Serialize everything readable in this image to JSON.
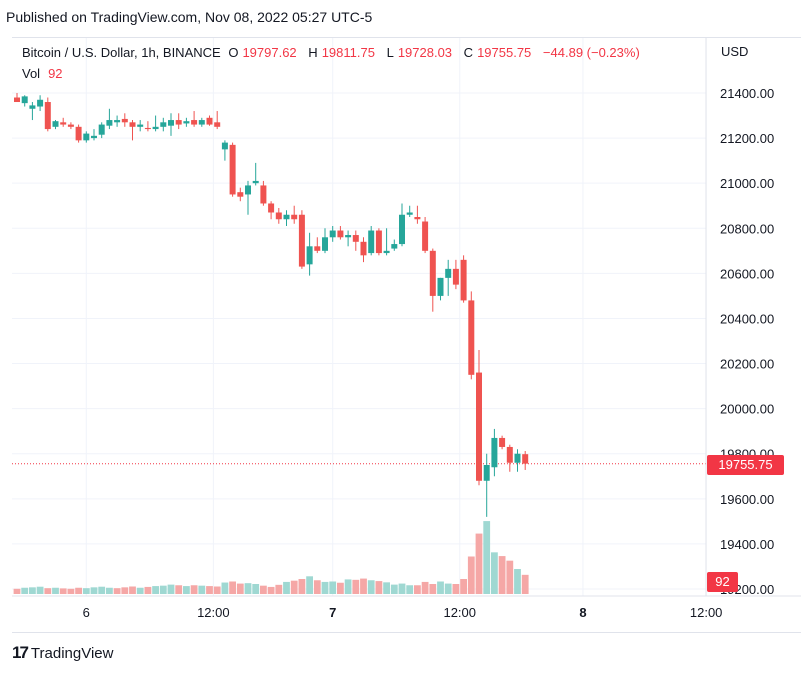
{
  "header": {
    "published": "Published on TradingView.com, Nov 08, 2022 05:27 UTC-5"
  },
  "legend": {
    "symbol": "Bitcoin / U.S. Dollar, 1h, BINANCE",
    "o_label": "O",
    "o_value": "19797.62",
    "h_label": "H",
    "h_value": "19811.75",
    "l_label": "L",
    "l_value": "19728.03",
    "c_label": "C",
    "c_value": "19755.75",
    "change": "−44.89 (−0.23%)",
    "vol_label": "Vol",
    "vol_value": "92"
  },
  "currency": "USD",
  "price_tag": "19755.75",
  "vol_tag": "92",
  "footer": {
    "brand": "TradingView",
    "logo": "17"
  },
  "colors": {
    "up": "#26a69a",
    "down": "#ef5350",
    "up_vol": "#9fd8d2",
    "down_vol": "#f5a7a6",
    "grid": "#f0f3fa",
    "last_price_line": "#f23645"
  },
  "chart_data": {
    "type": "candlestick",
    "timeframe": "1h",
    "y_ticks": [
      "21400.00",
      "21200.00",
      "21000.00",
      "20800.00",
      "20600.00",
      "20400.00",
      "20200.00",
      "20000.00",
      "19800.00",
      "19600.00",
      "19400.00",
      "19200.00"
    ],
    "ylim": [
      19200,
      21500
    ],
    "x_ticks": [
      "6",
      "12:00",
      "7",
      "12:00",
      "8",
      "12:00"
    ],
    "x_tick_index": [
      9,
      25.5,
      41,
      57.5,
      73.5,
      89.5
    ],
    "last_price": 19755.75,
    "candles": [
      {
        "o": 21380,
        "h": 21400,
        "l": 21370,
        "c": 21360
      },
      {
        "o": 21355,
        "h": 21390,
        "l": 21340,
        "c": 21385
      },
      {
        "o": 21330,
        "h": 21360,
        "l": 21280,
        "c": 21345
      },
      {
        "o": 21340,
        "h": 21390,
        "l": 21320,
        "c": 21370
      },
      {
        "o": 21360,
        "h": 21380,
        "l": 21230,
        "c": 21240
      },
      {
        "o": 21250,
        "h": 21280,
        "l": 21240,
        "c": 21275
      },
      {
        "o": 21270,
        "h": 21290,
        "l": 21250,
        "c": 21260
      },
      {
        "o": 21260,
        "h": 21270,
        "l": 21240,
        "c": 21250
      },
      {
        "o": 21250,
        "h": 21260,
        "l": 21180,
        "c": 21190
      },
      {
        "o": 21190,
        "h": 21230,
        "l": 21180,
        "c": 21220
      },
      {
        "o": 21200,
        "h": 21240,
        "l": 21190,
        "c": 21210
      },
      {
        "o": 21215,
        "h": 21270,
        "l": 21200,
        "c": 21260
      },
      {
        "o": 21255,
        "h": 21330,
        "l": 21240,
        "c": 21280
      },
      {
        "o": 21270,
        "h": 21300,
        "l": 21250,
        "c": 21280
      },
      {
        "o": 21285,
        "h": 21310,
        "l": 21250,
        "c": 21270
      },
      {
        "o": 21270,
        "h": 21280,
        "l": 21190,
        "c": 21250
      },
      {
        "o": 21250,
        "h": 21280,
        "l": 21230,
        "c": 21260
      },
      {
        "o": 21245,
        "h": 21275,
        "l": 21230,
        "c": 21240
      },
      {
        "o": 21240,
        "h": 21300,
        "l": 21230,
        "c": 21250
      },
      {
        "o": 21250,
        "h": 21290,
        "l": 21230,
        "c": 21270
      },
      {
        "o": 21255,
        "h": 21310,
        "l": 21210,
        "c": 21280
      },
      {
        "o": 21280,
        "h": 21310,
        "l": 21240,
        "c": 21260
      },
      {
        "o": 21265,
        "h": 21290,
        "l": 21250,
        "c": 21275
      },
      {
        "o": 21280,
        "h": 21320,
        "l": 21250,
        "c": 21260
      },
      {
        "o": 21260,
        "h": 21290,
        "l": 21250,
        "c": 21280
      },
      {
        "o": 21290,
        "h": 21300,
        "l": 21255,
        "c": 21260
      },
      {
        "o": 21270,
        "h": 21320,
        "l": 21240,
        "c": 21250
      },
      {
        "o": 21150,
        "h": 21190,
        "l": 21100,
        "c": 21180
      },
      {
        "o": 21170,
        "h": 21180,
        "l": 20940,
        "c": 20950
      },
      {
        "o": 20960,
        "h": 20980,
        "l": 20920,
        "c": 20940
      },
      {
        "o": 20950,
        "h": 21010,
        "l": 20860,
        "c": 20990
      },
      {
        "o": 21000,
        "h": 21090,
        "l": 20990,
        "c": 21010
      },
      {
        "o": 20990,
        "h": 21010,
        "l": 20900,
        "c": 20910
      },
      {
        "o": 20910,
        "h": 20920,
        "l": 20840,
        "c": 20870
      },
      {
        "o": 20870,
        "h": 20890,
        "l": 20820,
        "c": 20840
      },
      {
        "o": 20840,
        "h": 20880,
        "l": 20810,
        "c": 20860
      },
      {
        "o": 20860,
        "h": 20900,
        "l": 20820,
        "c": 20840
      },
      {
        "o": 20860,
        "h": 20880,
        "l": 20620,
        "c": 20630
      },
      {
        "o": 20640,
        "h": 20780,
        "l": 20590,
        "c": 20720
      },
      {
        "o": 20720,
        "h": 20760,
        "l": 20690,
        "c": 20700
      },
      {
        "o": 20700,
        "h": 20800,
        "l": 20690,
        "c": 20760
      },
      {
        "o": 20760,
        "h": 20810,
        "l": 20740,
        "c": 20790
      },
      {
        "o": 20790,
        "h": 20810,
        "l": 20750,
        "c": 20760
      },
      {
        "o": 20760,
        "h": 20790,
        "l": 20720,
        "c": 20770
      },
      {
        "o": 20770,
        "h": 20790,
        "l": 20700,
        "c": 20740
      },
      {
        "o": 20740,
        "h": 20760,
        "l": 20650,
        "c": 20680
      },
      {
        "o": 20690,
        "h": 20810,
        "l": 20680,
        "c": 20790
      },
      {
        "o": 20790,
        "h": 20800,
        "l": 20680,
        "c": 20690
      },
      {
        "o": 20690,
        "h": 20800,
        "l": 20680,
        "c": 20700
      },
      {
        "o": 20710,
        "h": 20750,
        "l": 20700,
        "c": 20730
      },
      {
        "o": 20730,
        "h": 20910,
        "l": 20720,
        "c": 20860
      },
      {
        "o": 20860,
        "h": 20900,
        "l": 20850,
        "c": 20870
      },
      {
        "o": 20850,
        "h": 20900,
        "l": 20820,
        "c": 20840
      },
      {
        "o": 20830,
        "h": 20850,
        "l": 20690,
        "c": 20700
      },
      {
        "o": 20700,
        "h": 20710,
        "l": 20430,
        "c": 20500
      },
      {
        "o": 20500,
        "h": 20580,
        "l": 20480,
        "c": 20580
      },
      {
        "o": 20580,
        "h": 20660,
        "l": 20500,
        "c": 20620
      },
      {
        "o": 20620,
        "h": 20660,
        "l": 20530,
        "c": 20550
      },
      {
        "o": 20660,
        "h": 20680,
        "l": 20470,
        "c": 20480
      },
      {
        "o": 20480,
        "h": 20520,
        "l": 20130,
        "c": 20150
      },
      {
        "o": 20160,
        "h": 20260,
        "l": 19660,
        "c": 19680
      },
      {
        "o": 19680,
        "h": 19800,
        "l": 19520,
        "c": 19750
      },
      {
        "o": 19740,
        "h": 19910,
        "l": 19700,
        "c": 19870
      },
      {
        "o": 19870,
        "h": 19880,
        "l": 19820,
        "c": 19830
      },
      {
        "o": 19830,
        "h": 19840,
        "l": 19720,
        "c": 19760
      },
      {
        "o": 19760,
        "h": 19820,
        "l": 19720,
        "c": 19800
      },
      {
        "o": 19798,
        "h": 19812,
        "l": 19728,
        "c": 19756
      }
    ],
    "volume_ylim": [
      0,
      500
    ],
    "volumes": [
      25,
      30,
      32,
      35,
      28,
      30,
      27,
      25,
      30,
      28,
      32,
      35,
      30,
      28,
      32,
      36,
      30,
      34,
      38,
      40,
      45,
      42,
      38,
      42,
      40,
      38,
      36,
      55,
      60,
      50,
      52,
      48,
      40,
      34,
      44,
      58,
      64,
      72,
      85,
      66,
      58,
      60,
      54,
      70,
      68,
      74,
      66,
      62,
      56,
      45,
      50,
      42,
      42,
      58,
      48,
      60,
      50,
      48,
      72,
      180,
      290,
      350,
      200,
      182,
      160,
      120,
      92
    ],
    "volume_up": [
      false,
      true,
      true,
      true,
      false,
      true,
      false,
      false,
      false,
      true,
      true,
      true,
      true,
      false,
      false,
      false,
      true,
      false,
      true,
      true,
      true,
      false,
      true,
      false,
      true,
      false,
      false,
      true,
      false,
      false,
      true,
      true,
      false,
      false,
      false,
      true,
      false,
      false,
      true,
      false,
      true,
      true,
      false,
      true,
      false,
      false,
      true,
      false,
      true,
      true,
      true,
      true,
      false,
      false,
      false,
      true,
      true,
      false,
      false,
      false,
      false,
      true,
      true,
      false,
      false,
      true,
      false
    ]
  }
}
